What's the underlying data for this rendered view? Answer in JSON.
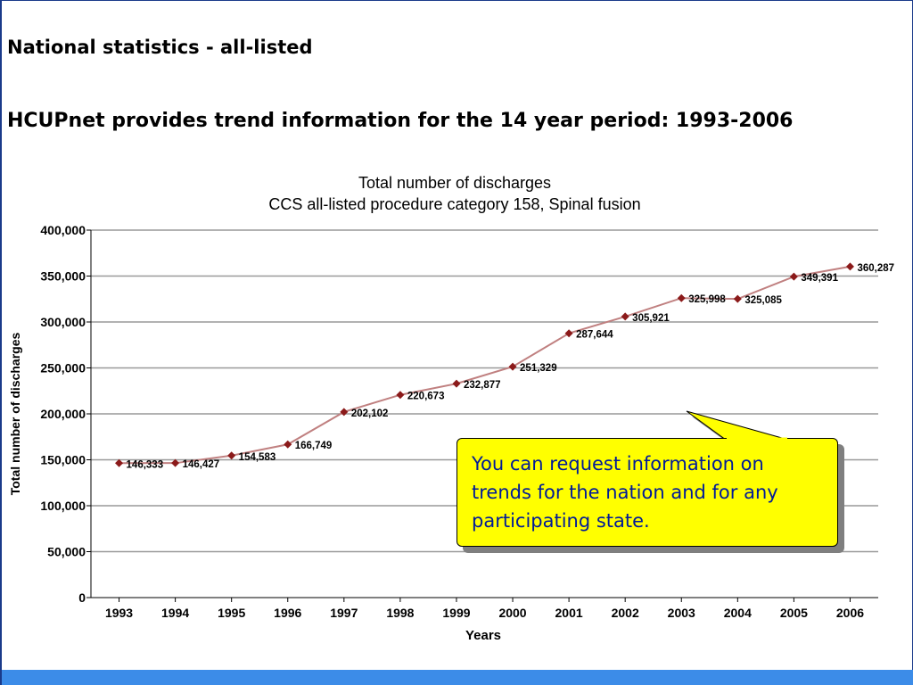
{
  "slide": {
    "title": "National statistics - all-listed",
    "subtitle": "HCUPnet provides trend information for the 14 year period: 1993-2006",
    "callout_text": "You can request information on trends for the nation and for any participating state."
  },
  "colors": {
    "series_line": "#c08080",
    "series_marker": "#8b1a1a",
    "grid": "#999999",
    "callout_fill": "#ffff00",
    "callout_text": "#001a99",
    "bottom_bar": "#3c8ce8"
  },
  "chart_data": {
    "type": "line",
    "title": "Total number of discharges",
    "subtitle": "CCS all-listed procedure category 158, Spinal fusion",
    "xlabel": "Years",
    "ylabel": "Total number of discharges",
    "ylim": [
      0,
      400000
    ],
    "yticks": [
      "0",
      "50,000",
      "100,000",
      "150,000",
      "200,000",
      "250,000",
      "300,000",
      "350,000",
      "400,000"
    ],
    "grid": true,
    "categories": [
      "1993",
      "1994",
      "1995",
      "1996",
      "1997",
      "1998",
      "1999",
      "2000",
      "2001",
      "2002",
      "2003",
      "2004",
      "2005",
      "2006"
    ],
    "series": [
      {
        "values": [
          146333,
          146427,
          154583,
          166749,
          202102,
          220673,
          232877,
          251329,
          287644,
          305921,
          325998,
          325085,
          349391,
          360287
        ],
        "labels": [
          "146,333",
          "146,427",
          "154,583",
          "166,749",
          "202,102",
          "220,673",
          "232,877",
          "251,329",
          "287,644",
          "305,921",
          "325,998",
          "325,085",
          "349,391",
          "360,287"
        ]
      }
    ]
  }
}
